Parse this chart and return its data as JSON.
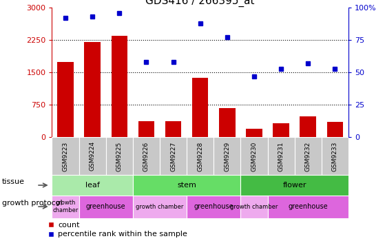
{
  "title": "GDS416 / 266395_at",
  "samples": [
    "GSM9223",
    "GSM9224",
    "GSM9225",
    "GSM9226",
    "GSM9227",
    "GSM9228",
    "GSM9229",
    "GSM9230",
    "GSM9231",
    "GSM9232",
    "GSM9233"
  ],
  "counts": [
    1750,
    2200,
    2350,
    380,
    370,
    1380,
    680,
    200,
    330,
    490,
    350
  ],
  "percentiles": [
    92,
    93,
    96,
    58,
    58,
    88,
    77,
    47,
    53,
    57,
    53
  ],
  "ylim_left": [
    0,
    3000
  ],
  "ylim_right": [
    0,
    100
  ],
  "yticks_left": [
    0,
    750,
    1500,
    2250,
    3000
  ],
  "yticks_right": [
    0,
    25,
    50,
    75,
    100
  ],
  "ytick_labels_left": [
    "0",
    "750",
    "1500",
    "2250",
    "3000"
  ],
  "ytick_labels_right": [
    "0",
    "25",
    "50",
    "75",
    "100%"
  ],
  "hlines": [
    750,
    1500,
    2250
  ],
  "tissue_groups": [
    {
      "label": "leaf",
      "start": 0,
      "end": 3,
      "color": "#aaeaaa"
    },
    {
      "label": "stem",
      "start": 3,
      "end": 7,
      "color": "#66dd66"
    },
    {
      "label": "flower",
      "start": 7,
      "end": 11,
      "color": "#44bb44"
    }
  ],
  "growth_groups": [
    {
      "label": "growth\nchamber",
      "start": 0,
      "end": 1,
      "color": "#eeaaee",
      "fontsize": 6
    },
    {
      "label": "greenhouse",
      "start": 1,
      "end": 3,
      "color": "#dd66dd",
      "fontsize": 7
    },
    {
      "label": "growth chamber",
      "start": 3,
      "end": 5,
      "color": "#eeaaee",
      "fontsize": 6
    },
    {
      "label": "greenhouse",
      "start": 5,
      "end": 7,
      "color": "#dd66dd",
      "fontsize": 7
    },
    {
      "label": "growth chamber",
      "start": 7,
      "end": 8,
      "color": "#eeaaee",
      "fontsize": 6
    },
    {
      "label": "greenhouse",
      "start": 8,
      "end": 11,
      "color": "#dd66dd",
      "fontsize": 7
    }
  ],
  "bar_color": "#CC0000",
  "dot_color": "#0000CC",
  "bg_color": "#FFFFFF",
  "sample_box_color": "#C8C8C8",
  "axis_left_color": "#CC0000",
  "axis_right_color": "#0000CC",
  "tissue_label": "tissue",
  "growth_label": "growth protocol",
  "legend_count": "count",
  "legend_pct": "percentile rank within the sample",
  "legend_count_color": "#CC0000",
  "legend_pct_color": "#0000CC"
}
